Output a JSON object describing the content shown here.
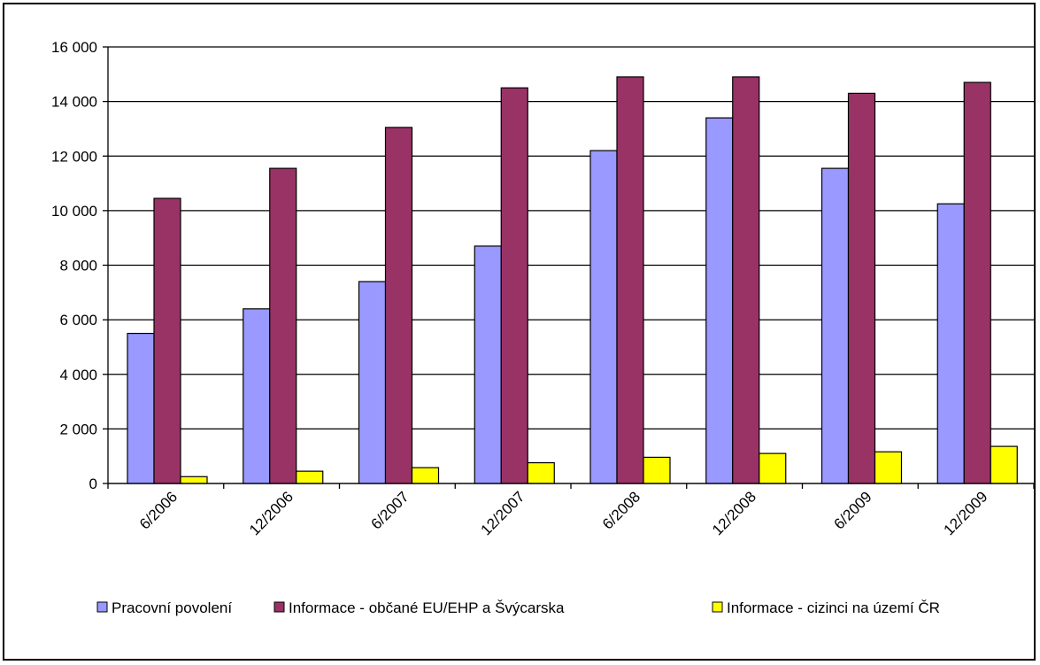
{
  "chart_data": {
    "type": "bar",
    "title": "",
    "xlabel": "",
    "ylabel": "",
    "categories": [
      "6/2006",
      "12/2006",
      "6/2007",
      "12/2007",
      "6/2008",
      "12/2008",
      "6/2009",
      "12/2009"
    ],
    "series": [
      {
        "name": "Pracovní povolení",
        "color": "#9999FF",
        "values": [
          5500,
          6400,
          7400,
          8700,
          12200,
          13400,
          11550,
          10250
        ]
      },
      {
        "name": "Informace - občané EU/EHP a Švýcarska",
        "color": "#993366",
        "values": [
          10450,
          11550,
          13050,
          14500,
          14900,
          14900,
          14300,
          14700
        ]
      },
      {
        "name": "Informace - cizinci na území ČR",
        "color": "#FFFF00",
        "values": [
          250,
          450,
          580,
          760,
          960,
          1100,
          1160,
          1360
        ]
      }
    ],
    "ylim": [
      0,
      16000
    ],
    "yticks": [
      {
        "value": 0,
        "label": "0"
      },
      {
        "value": 2000,
        "label": "2 000"
      },
      {
        "value": 4000,
        "label": "4 000"
      },
      {
        "value": 6000,
        "label": "6 000"
      },
      {
        "value": 8000,
        "label": "8 000"
      },
      {
        "value": 10000,
        "label": "10 000"
      },
      {
        "value": 12000,
        "label": "12 000"
      },
      {
        "value": 14000,
        "label": "14 000"
      },
      {
        "value": 16000,
        "label": "16 000"
      }
    ],
    "grid": true,
    "legend_position": "bottom"
  }
}
